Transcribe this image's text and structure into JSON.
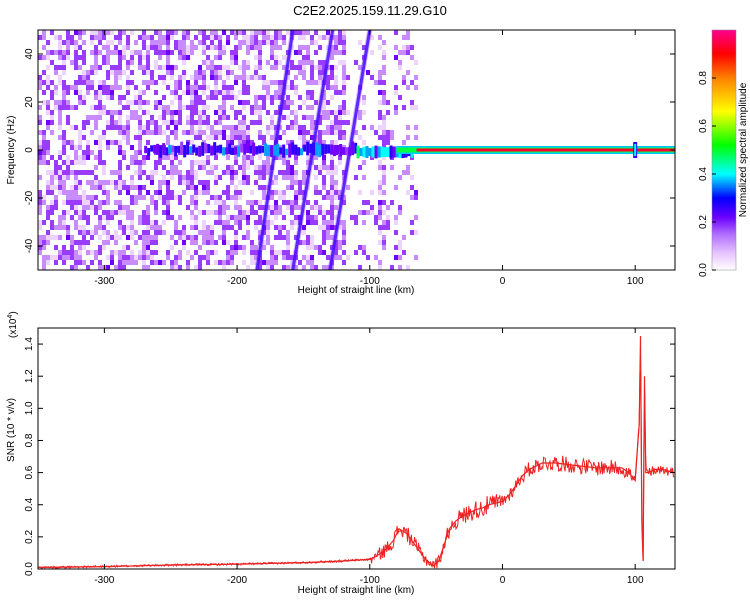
{
  "title": "C2E2.2025.159.11.29.G10",
  "chart_data": [
    {
      "type": "heatmap",
      "xlabel": "Height of straight line (km)",
      "ylabel": "Frequency (Hz)",
      "xlim": [
        -350,
        130
      ],
      "ylim": [
        -50,
        50
      ],
      "xticks": [
        -300,
        -200,
        -100,
        0,
        100
      ],
      "yticks": [
        -40,
        -20,
        0,
        20,
        40
      ],
      "colorbar": {
        "label": "Normalized spectral amplitude",
        "range": [
          0.0,
          1.0
        ],
        "ticks": [
          "0.0",
          "0.2",
          "0.4",
          "0.6",
          "0.8"
        ],
        "colormap": [
          "#ffffff",
          "#f0c8ff",
          "#c080ff",
          "#8000ff",
          "#0000ff",
          "#00ffff",
          "#00ff00",
          "#ffff00",
          "#ff8000",
          "#ff0000",
          "#ff0080"
        ]
      },
      "features": {
        "carrier_frequency_hz": 0,
        "carrier_start_km": -270,
        "carrier_strong_from_km": -110,
        "streak1": {
          "x_at_ymax": -158,
          "x_at_ymin": -185
        },
        "streak2": {
          "x_at_ymax": -128,
          "x_at_ymin": -158
        },
        "streak3": {
          "x_at_ymax": -100,
          "x_at_ymin": -130
        },
        "noise_end_km": -65
      },
      "grid": false
    },
    {
      "type": "line",
      "xlabel": "Height of straight line (km)",
      "ylabel": "SNR (10 * v/v)",
      "y_multiplier": "(x10",
      "y_multiplier_exp": "4",
      "y_multiplier_close": ")",
      "xlim": [
        -350,
        130
      ],
      "ylim": [
        0,
        1.5
      ],
      "xticks": [
        -300,
        -200,
        -100,
        0,
        100
      ],
      "yticks": [
        "0.0",
        "0.2",
        "0.4",
        "0.6",
        "0.8",
        "1.0",
        "1.2",
        "1.4"
      ],
      "series": [
        {
          "color": "#ee2222",
          "x": [
            -350,
            -300,
            -250,
            -200,
            -150,
            -120,
            -100,
            -95,
            -88,
            -82,
            -78,
            -72,
            -65,
            -58,
            -52,
            -48,
            -44,
            -40,
            -35,
            -30,
            -25,
            -20,
            -15,
            -10,
            -5,
            0,
            5,
            10,
            15,
            20,
            25,
            30,
            35,
            40,
            50,
            60,
            70,
            80,
            90,
            95,
            100,
            103,
            104,
            105,
            106,
            107,
            108,
            110,
            115,
            120,
            125,
            130
          ],
          "y": [
            0.01,
            0.015,
            0.025,
            0.03,
            0.04,
            0.05,
            0.06,
            0.08,
            0.12,
            0.18,
            0.25,
            0.22,
            0.14,
            0.06,
            0.02,
            0.05,
            0.15,
            0.25,
            0.3,
            0.33,
            0.35,
            0.37,
            0.38,
            0.4,
            0.41,
            0.42,
            0.46,
            0.52,
            0.58,
            0.62,
            0.64,
            0.66,
            0.66,
            0.66,
            0.65,
            0.64,
            0.63,
            0.63,
            0.63,
            0.6,
            0.55,
            0.9,
            1.45,
            0.3,
            0.05,
            1.2,
            0.6,
            0.6,
            0.62,
            0.62,
            0.61,
            0.6
          ]
        }
      ],
      "grid": false
    }
  ]
}
